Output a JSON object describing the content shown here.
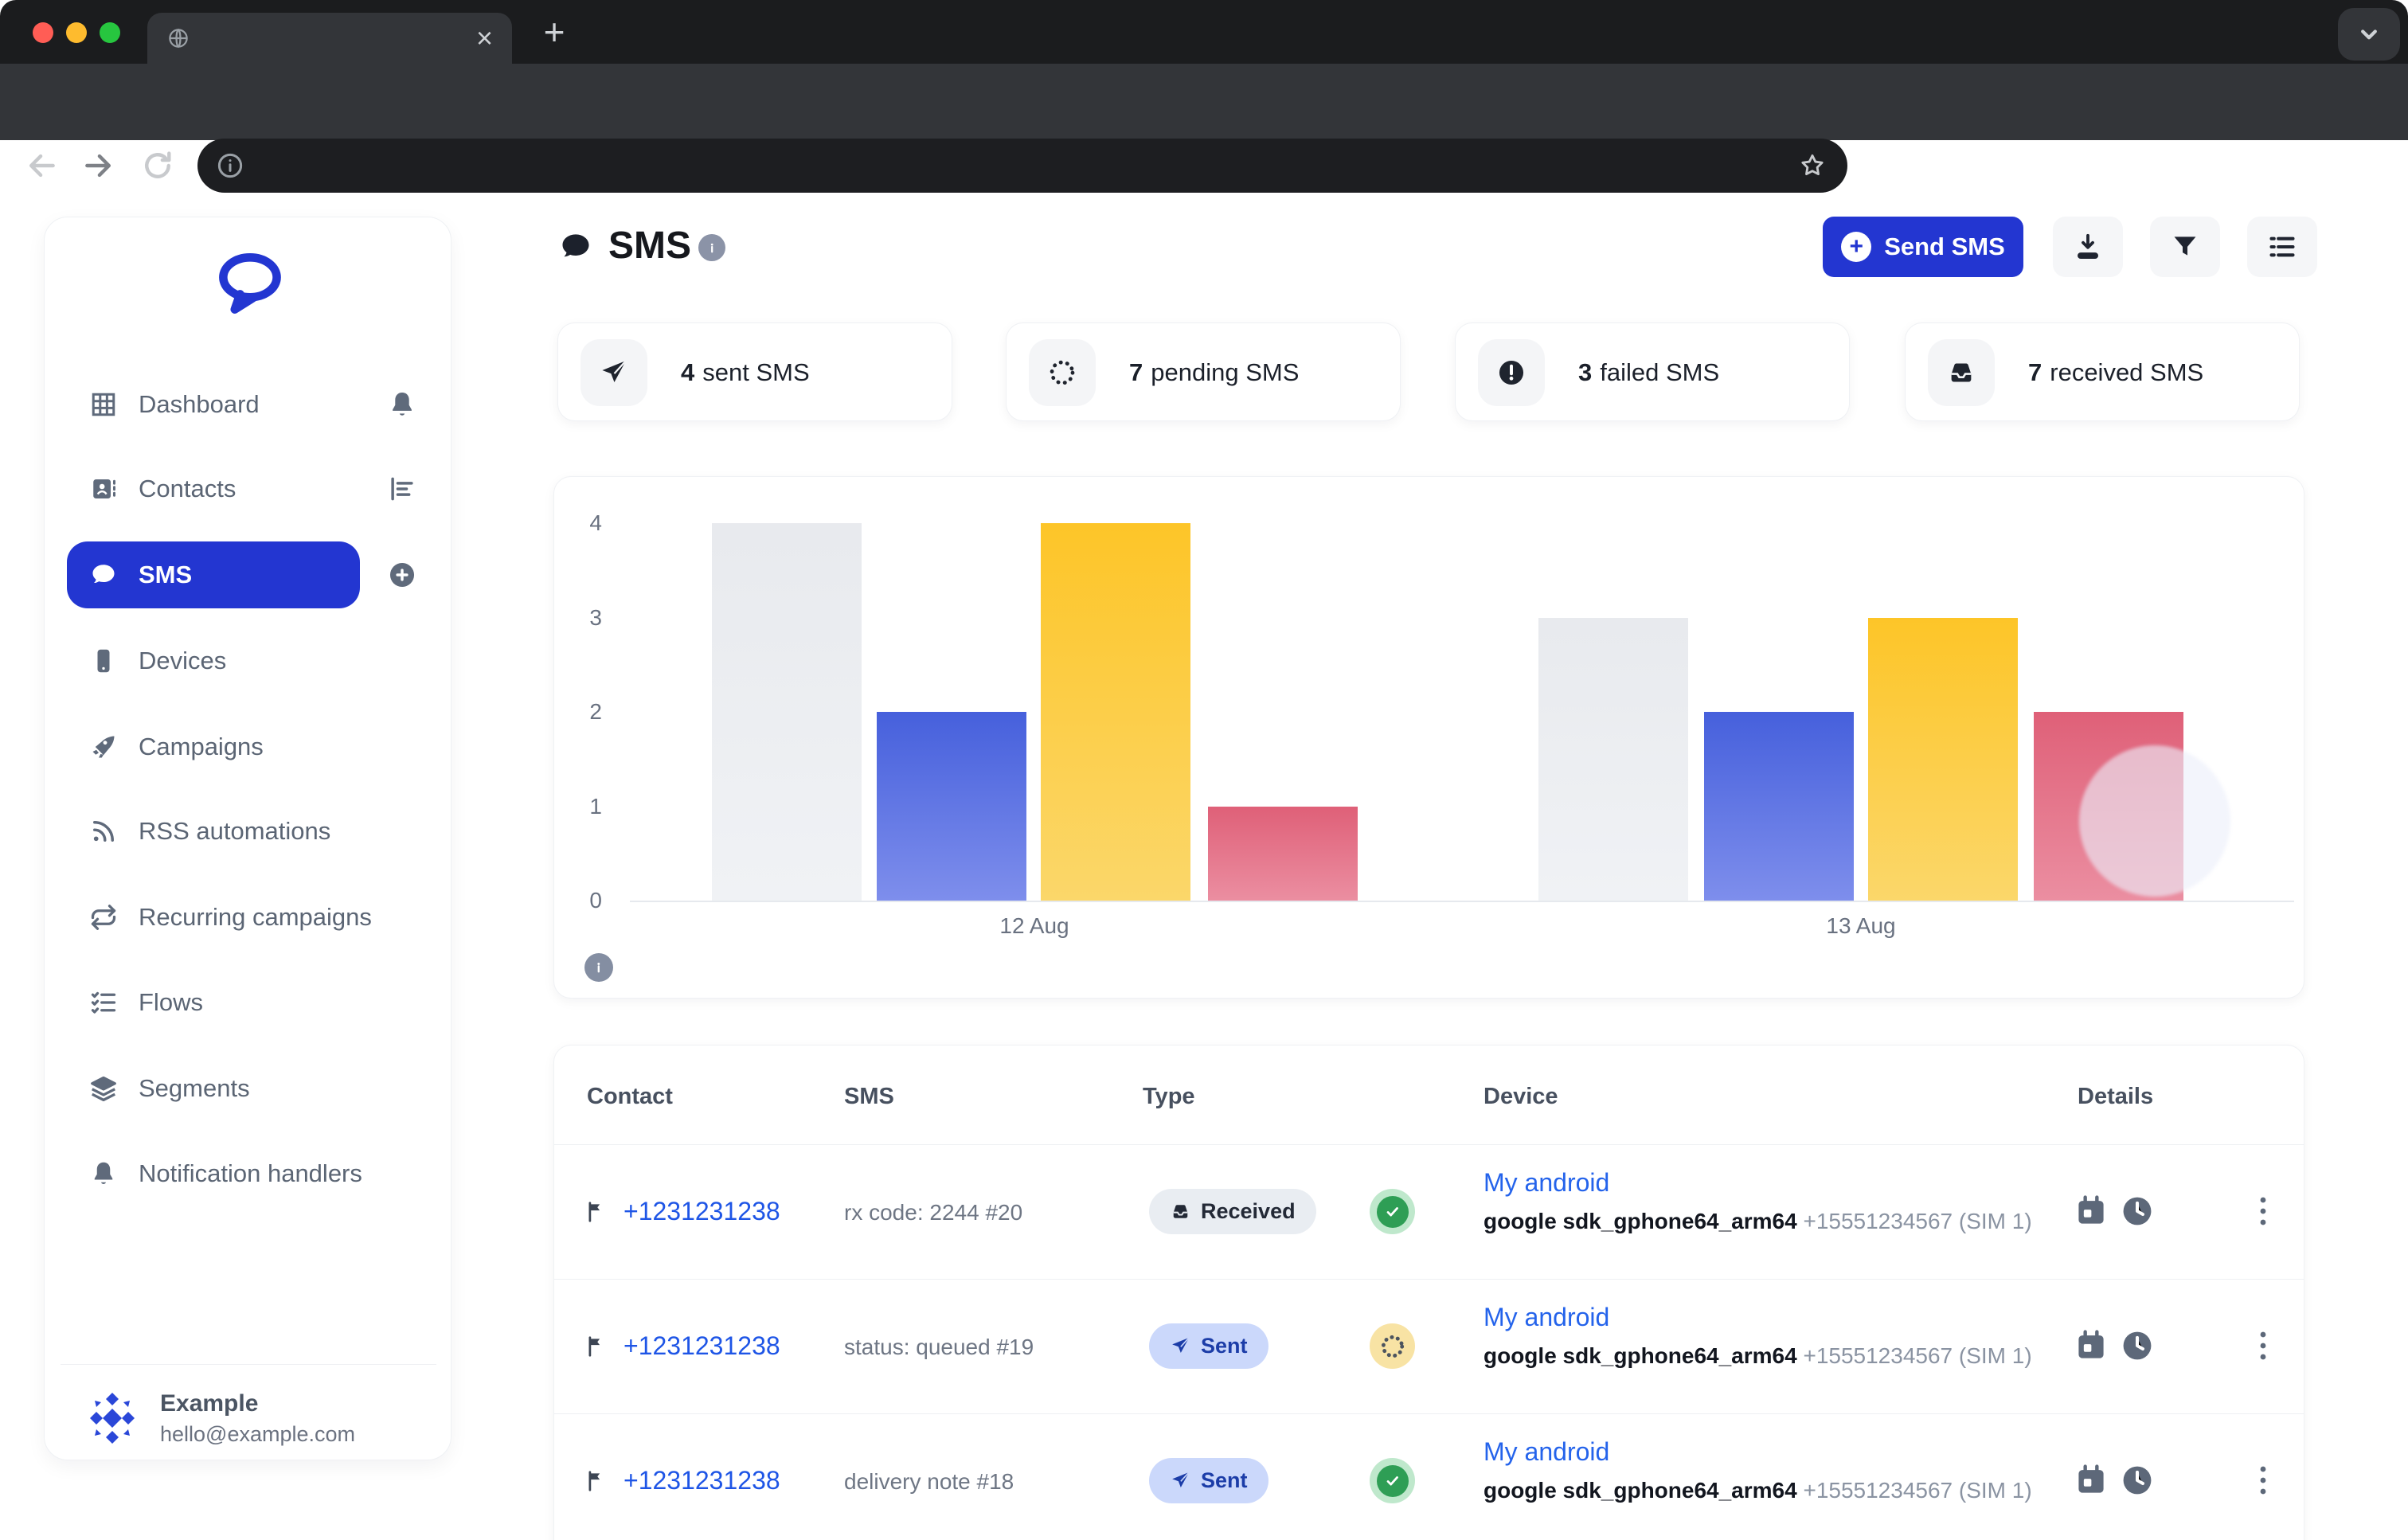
{
  "theme": {
    "accent": "#2336d1",
    "link": "#2463eb",
    "badge_sent_bg": "#cbd8fb",
    "badge_received_bg": "#e9edf2",
    "status_green": "#2e9e55",
    "status_yellow": "#f8e3a4"
  },
  "browser": {
    "tab_close": "×",
    "new_tab": "+",
    "url_value": ""
  },
  "sidebar": {
    "items": [
      {
        "label": "Dashboard",
        "icon": "grid-icon",
        "right_icon": "bell-icon"
      },
      {
        "label": "Contacts",
        "icon": "contact-card-icon",
        "right_icon": "bar-chart-icon"
      },
      {
        "label": "SMS",
        "icon": "chat-bubble-icon",
        "right_icon": "plus-circle-icon",
        "active": true
      },
      {
        "label": "Devices",
        "icon": "phone-icon"
      },
      {
        "label": "Campaigns",
        "icon": "rocket-icon"
      },
      {
        "label": "RSS automations",
        "icon": "rss-icon"
      },
      {
        "label": "Recurring campaigns",
        "icon": "repeat-icon"
      },
      {
        "label": "Flows",
        "icon": "checklist-icon"
      },
      {
        "label": "Segments",
        "icon": "layers-icon"
      },
      {
        "label": "Notification handlers",
        "icon": "bell-icon"
      }
    ],
    "profile": {
      "name": "Example",
      "email": "hello@example.com"
    }
  },
  "header": {
    "title": "SMS",
    "send_button_label": "Send SMS"
  },
  "stats": [
    {
      "value": "4",
      "label": "sent SMS",
      "icon": "paper-plane-icon"
    },
    {
      "value": "7",
      "label": "pending SMS",
      "icon": "spinner-icon"
    },
    {
      "value": "3",
      "label": "failed SMS",
      "icon": "alert-circle-icon"
    },
    {
      "value": "7",
      "label": "received SMS",
      "icon": "inbox-icon"
    }
  ],
  "chart_data": {
    "type": "bar",
    "categories": [
      "12 Aug",
      "13 Aug"
    ],
    "series": [
      {
        "name": "received",
        "values": [
          4,
          3
        ],
        "color": "#edeef2"
      },
      {
        "name": "sent",
        "values": [
          2,
          2
        ],
        "color": "#5068e0"
      },
      {
        "name": "pending",
        "values": [
          4,
          3
        ],
        "color": "#fcc93d"
      },
      {
        "name": "failed",
        "values": [
          1,
          2
        ],
        "color": "#e4738a"
      }
    ],
    "yticks": [
      0,
      1,
      2,
      3,
      4
    ],
    "ylim": [
      0,
      4
    ],
    "grid": false,
    "legend": "none",
    "title": "",
    "xlabel": "",
    "ylabel": ""
  },
  "table": {
    "columns": [
      "Contact",
      "SMS",
      "Type",
      "Device",
      "Details"
    ],
    "rows": [
      {
        "contact": "+1231231238",
        "sms": "rx code: 2244 #20",
        "type": "Received",
        "status": "success",
        "device_name": "My android",
        "device_model": "google sdk_gphone64_arm64",
        "device_number": "+15551234567 (SIM 1)"
      },
      {
        "contact": "+1231231238",
        "sms": "status: queued #19",
        "type": "Sent",
        "status": "pending",
        "device_name": "My android",
        "device_model": "google sdk_gphone64_arm64",
        "device_number": "+15551234567 (SIM 1)"
      },
      {
        "contact": "+1231231238",
        "sms": "delivery note #18",
        "type": "Sent",
        "status": "success",
        "device_name": "My android",
        "device_model": "google sdk_gphone64_arm64",
        "device_number": "+15551234567 (SIM 1)"
      }
    ]
  }
}
